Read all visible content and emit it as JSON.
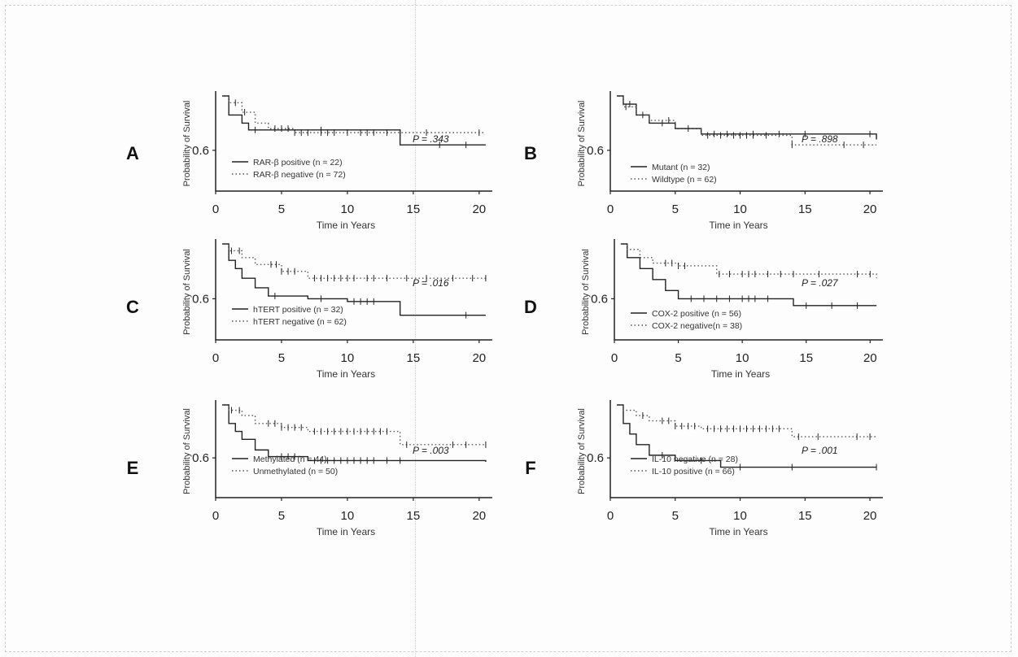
{
  "chart_data": [
    {
      "type": "line",
      "panel": "A",
      "p_value": "P = .343",
      "xlabel": "Time in Years",
      "ylabel": "Probability of Survival",
      "x_ticks": [
        0,
        5,
        10,
        15,
        20
      ],
      "y_ticks": [
        0.6
      ],
      "xlim": [
        0,
        21
      ],
      "ylim": [
        0.3,
        1.0
      ],
      "series": [
        {
          "name": "RAR-β positive (n = 22)",
          "style": "solid",
          "x": [
            0.5,
            1.0,
            2.0,
            2.5,
            7.0,
            14.0,
            20.5
          ],
          "y": [
            1.0,
            0.86,
            0.8,
            0.75,
            0.75,
            0.64,
            0.64
          ],
          "censored_x": [
            3.0,
            8.0,
            17.0,
            19.0
          ]
        },
        {
          "name": "RAR-β negative (n = 72)",
          "style": "dotted",
          "x": [
            0.5,
            1.0,
            2.0,
            3.0,
            4.0,
            6.0,
            20.5
          ],
          "y": [
            1.0,
            0.95,
            0.88,
            0.8,
            0.76,
            0.73,
            0.73
          ],
          "censored_x": [
            1.5,
            2.2,
            4.5,
            5.0,
            5.5,
            6.0,
            6.5,
            7.0,
            8.0,
            8.5,
            9.0,
            10.0,
            11.0,
            11.5,
            12.0,
            13.0,
            14.0,
            16.0,
            20.0
          ]
        }
      ]
    },
    {
      "type": "line",
      "panel": "B",
      "p_value": "P = .898",
      "xlabel": "Time in Years",
      "ylabel": "Probability of Survival",
      "x_ticks": [
        0,
        5,
        10,
        15,
        20
      ],
      "y_ticks": [
        0.6
      ],
      "xlim": [
        0,
        21
      ],
      "ylim": [
        0.3,
        1.0
      ],
      "series": [
        {
          "name": "Mutant (n = 32)",
          "style": "solid",
          "x": [
            0.5,
            1.0,
            2.0,
            3.0,
            5.0,
            7.0,
            20.5
          ],
          "y": [
            1.0,
            0.94,
            0.86,
            0.8,
            0.76,
            0.72,
            0.68
          ],
          "censored_x": [
            1.5,
            4.0,
            8.0,
            9.0,
            11.0,
            13.0,
            15.0,
            20.0
          ]
        },
        {
          "name": "Wildtype (n = 62)",
          "style": "dotted",
          "x": [
            0.5,
            1.0,
            2.0,
            3.0,
            5.0,
            7.0,
            14.0,
            20.5
          ],
          "y": [
            1.0,
            0.92,
            0.86,
            0.82,
            0.76,
            0.71,
            0.64,
            0.64
          ],
          "censored_x": [
            1.2,
            2.5,
            4.5,
            6.0,
            7.5,
            8.5,
            9.5,
            10.0,
            10.5,
            11.0,
            12.0,
            14.0,
            18.0,
            19.5
          ]
        }
      ]
    },
    {
      "type": "line",
      "panel": "C",
      "p_value": "P = .016",
      "xlabel": "Time in Years",
      "ylabel": "Probability of Survival",
      "x_ticks": [
        0,
        5,
        10,
        15,
        20
      ],
      "y_ticks": [
        0.6
      ],
      "xlim": [
        0,
        21
      ],
      "ylim": [
        0.3,
        1.0
      ],
      "series": [
        {
          "name": "hTERT positive (n = 32)",
          "style": "solid",
          "x": [
            0.5,
            1.0,
            1.5,
            2.0,
            3.0,
            4.0,
            7.0,
            10.0,
            14.0,
            20.5
          ],
          "y": [
            1.0,
            0.88,
            0.82,
            0.75,
            0.68,
            0.62,
            0.6,
            0.58,
            0.48,
            0.48
          ],
          "censored_x": [
            4.5,
            8.0,
            10.5,
            11.0,
            11.5,
            12.0,
            19.0
          ]
        },
        {
          "name": "hTERT negative (n = 62)",
          "style": "dotted",
          "x": [
            0.5,
            1.0,
            2.0,
            3.0,
            5.0,
            7.0,
            20.5
          ],
          "y": [
            1.0,
            0.95,
            0.9,
            0.85,
            0.8,
            0.75,
            0.75
          ],
          "censored_x": [
            1.2,
            1.8,
            4.2,
            4.6,
            5.0,
            5.5,
            6.0,
            7.5,
            8.0,
            8.5,
            9.0,
            9.5,
            10.0,
            10.5,
            11.5,
            12.0,
            13.0,
            14.5,
            16.0,
            18.0,
            19.5,
            20.5
          ]
        }
      ]
    },
    {
      "type": "line",
      "panel": "D",
      "p_value": "P = .027",
      "xlabel": "Time in Years",
      "ylabel": "Probability of Survival",
      "x_ticks": [
        0,
        5,
        10,
        15,
        20
      ],
      "y_ticks": [
        0.6
      ],
      "xlim": [
        0,
        21
      ],
      "ylim": [
        0.3,
        1.0
      ],
      "series": [
        {
          "name": "COX-2 positive (n = 56)",
          "style": "solid",
          "x": [
            0.5,
            1.0,
            2.0,
            3.0,
            4.0,
            5.0,
            14.0,
            20.5
          ],
          "y": [
            1.0,
            0.9,
            0.82,
            0.74,
            0.66,
            0.6,
            0.55,
            0.55
          ],
          "censored_x": [
            6.0,
            7.0,
            8.0,
            9.0,
            10.0,
            10.5,
            11.0,
            12.0,
            15.0,
            17.0,
            19.0
          ]
        },
        {
          "name": "COX-2 negative(n = 38)",
          "style": "dotted",
          "x": [
            0.5,
            1.0,
            2.0,
            3.0,
            5.0,
            8.0,
            20.5
          ],
          "y": [
            1.0,
            0.96,
            0.9,
            0.86,
            0.84,
            0.78,
            0.75
          ],
          "censored_x": [
            4.0,
            4.5,
            5.0,
            5.5,
            8.2,
            9.0,
            10.0,
            10.5,
            11.0,
            12.0,
            13.0,
            14.0,
            16.0,
            19.0,
            20.0
          ]
        }
      ]
    },
    {
      "type": "line",
      "panel": "E",
      "p_value": "P = .003",
      "xlabel": "Time in Years",
      "ylabel": "Probability of Survival",
      "x_ticks": [
        0,
        5,
        10,
        15,
        20
      ],
      "y_ticks": [
        0.6
      ],
      "xlim": [
        0,
        21
      ],
      "ylim": [
        0.3,
        1.0
      ],
      "series": [
        {
          "name": "Methylated (n = 44)",
          "style": "solid",
          "x": [
            0.5,
            1.0,
            1.5,
            2.0,
            3.0,
            4.0,
            7.0,
            20.5
          ],
          "y": [
            1.0,
            0.86,
            0.8,
            0.74,
            0.66,
            0.61,
            0.58,
            0.57
          ],
          "censored_x": [
            5.0,
            5.5,
            6.0,
            7.5,
            8.0,
            8.5,
            9.0,
            9.5,
            10.0,
            10.5,
            11.0,
            11.5,
            12.0,
            13.0,
            14.0
          ]
        },
        {
          "name": "Unmethylated (n = 50)",
          "style": "dotted",
          "x": [
            0.5,
            1.0,
            2.0,
            3.0,
            5.0,
            7.0,
            14.0,
            20.5
          ],
          "y": [
            1.0,
            0.96,
            0.92,
            0.86,
            0.83,
            0.8,
            0.7,
            0.7
          ],
          "censored_x": [
            1.2,
            1.8,
            4.0,
            4.5,
            5.0,
            5.5,
            6.0,
            6.5,
            7.5,
            8.0,
            8.5,
            9.0,
            9.5,
            10.0,
            10.5,
            11.0,
            11.5,
            12.0,
            12.5,
            13.0,
            14.5,
            18.0,
            19.0,
            20.5
          ]
        }
      ]
    },
    {
      "type": "line",
      "panel": "F",
      "p_value": "P = .001",
      "xlabel": "Time in Years",
      "ylabel": "Probability of Survival",
      "x_ticks": [
        0,
        5,
        10,
        15,
        20
      ],
      "y_ticks": [
        0.6
      ],
      "xlim": [
        0,
        21
      ],
      "ylim": [
        0.3,
        1.0
      ],
      "series": [
        {
          "name": "IL-10 negative (n = 28)",
          "style": "solid",
          "x": [
            0.5,
            1.0,
            1.5,
            2.0,
            3.0,
            5.0,
            8.5,
            20.5
          ],
          "y": [
            1.0,
            0.86,
            0.78,
            0.7,
            0.62,
            0.58,
            0.53,
            0.53
          ],
          "censored_x": [
            4.0,
            7.0,
            10.0,
            14.0,
            20.5
          ]
        },
        {
          "name": "IL-10 positive (n = 66)",
          "style": "dotted",
          "x": [
            0.5,
            1.0,
            2.0,
            3.0,
            5.0,
            7.0,
            14.0,
            20.5
          ],
          "y": [
            1.0,
            0.96,
            0.92,
            0.88,
            0.84,
            0.82,
            0.76,
            0.76
          ],
          "censored_x": [
            2.5,
            4.0,
            4.5,
            5.0,
            5.5,
            6.0,
            6.5,
            7.5,
            8.0,
            8.5,
            9.0,
            9.5,
            10.0,
            10.5,
            11.0,
            11.5,
            12.0,
            12.5,
            13.0,
            14.5,
            16.0,
            19.0,
            20.0
          ]
        }
      ]
    }
  ]
}
